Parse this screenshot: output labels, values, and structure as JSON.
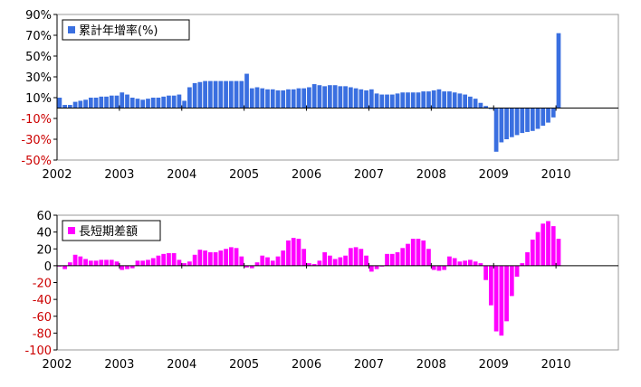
{
  "chart_data": [
    {
      "type": "bar",
      "legend": "累計年增率(%)",
      "legend_position": "top-left",
      "color": "#3a6fe0",
      "grid": false,
      "ylim": [
        -50,
        90
      ],
      "yticks": [
        "90%",
        "70%",
        "50%",
        "30%",
        "10%",
        "-10%",
        "-30%",
        "-50%"
      ],
      "ytick_values": [
        90,
        70,
        50,
        30,
        10,
        -10,
        -30,
        -50
      ],
      "xticks": [
        "2002",
        "2003",
        "2004",
        "2005",
        "2006",
        "2007",
        "2008",
        "2009",
        "2010"
      ],
      "x_start": "2002-01",
      "x_end": "2010-12",
      "series": [
        {
          "values": [
            10,
            3,
            3,
            6,
            7,
            8,
            10,
            10,
            11,
            11,
            12,
            12,
            15,
            13,
            10,
            9,
            8,
            9,
            10,
            10,
            11,
            12,
            12,
            13,
            7,
            20,
            24,
            25,
            26,
            26,
            26,
            26,
            26,
            26,
            26,
            26,
            33,
            19,
            20,
            19,
            18,
            18,
            17,
            17,
            18,
            18,
            19,
            19,
            20,
            23,
            22,
            21,
            22,
            22,
            21,
            21,
            20,
            19,
            18,
            17,
            18,
            14,
            13,
            13,
            13,
            14,
            15,
            15,
            15,
            15,
            16,
            16,
            17,
            18,
            16,
            16,
            15,
            14,
            13,
            11,
            9,
            5,
            2,
            -1,
            -42,
            -33,
            -30,
            -28,
            -26,
            -24,
            -23,
            -22,
            -20,
            -17,
            -14,
            -9,
            72
          ]
        }
      ]
    },
    {
      "type": "bar",
      "legend": "長短期差額",
      "legend_position": "top-left",
      "color": "#ff00ff",
      "grid": false,
      "ylim": [
        -100,
        60
      ],
      "yticks": [
        "60",
        "40",
        "20",
        "0",
        "-20",
        "-40",
        "-60",
        "-80",
        "-100"
      ],
      "ytick_values": [
        60,
        40,
        20,
        0,
        -20,
        -40,
        -60,
        -80,
        -100
      ],
      "xticks": [
        "2002",
        "2003",
        "2004",
        "2005",
        "2006",
        "2007",
        "2008",
        "2009",
        "2010"
      ],
      "x_start": "2002-01",
      "x_end": "2010-12",
      "series": [
        {
          "values": [
            -1,
            -4,
            4,
            13,
            11,
            8,
            6,
            6,
            7,
            7,
            7,
            5,
            -5,
            -4,
            -3,
            6,
            6,
            7,
            9,
            12,
            14,
            15,
            15,
            7,
            3,
            5,
            13,
            19,
            18,
            16,
            16,
            18,
            20,
            22,
            21,
            11,
            -2,
            -3,
            4,
            12,
            10,
            6,
            11,
            18,
            30,
            33,
            32,
            20,
            3,
            2,
            6,
            16,
            12,
            8,
            10,
            12,
            21,
            22,
            20,
            12,
            -7,
            -4,
            -1,
            14,
            14,
            16,
            21,
            26,
            32,
            32,
            30,
            20,
            -5,
            -6,
            -5,
            11,
            9,
            5,
            6,
            7,
            5,
            3,
            -17,
            -47,
            -78,
            -83,
            -66,
            -36,
            -13,
            3,
            16,
            31,
            40,
            50,
            53,
            47,
            32
          ]
        }
      ]
    }
  ]
}
